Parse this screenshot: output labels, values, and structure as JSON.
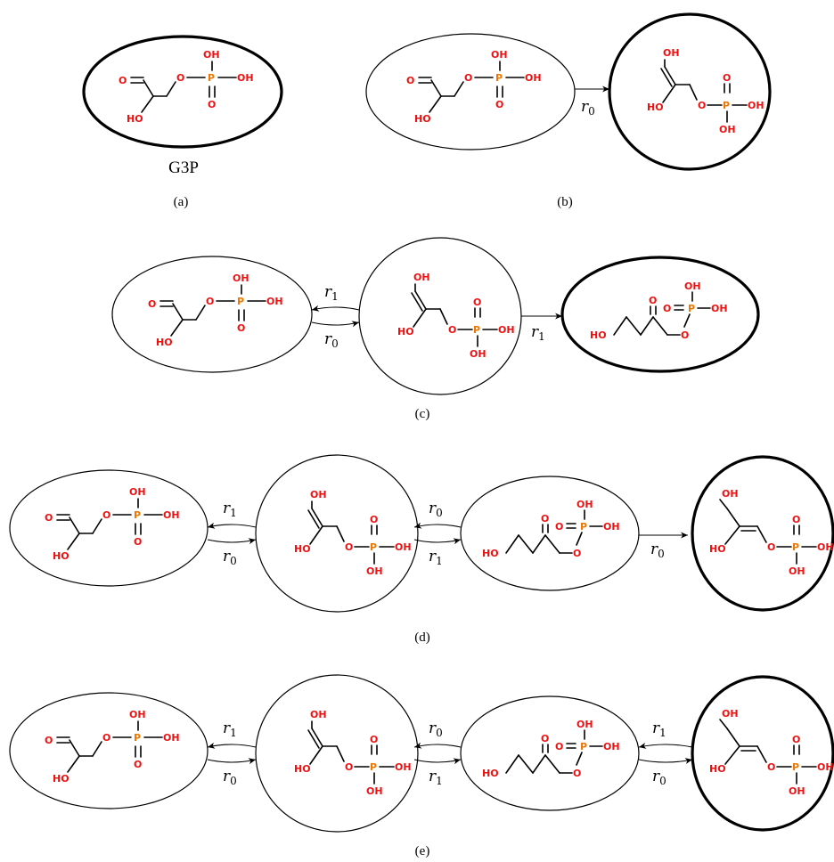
{
  "palette": {
    "oxygen": "#ee1111",
    "phosphorus": "#f07800",
    "bond": "#000000"
  },
  "labels": {
    "g3p": "G3P",
    "caption_a": "(a)",
    "caption_b": "(b)",
    "caption_c": "(c)",
    "caption_d": "(d)",
    "caption_e": "(e)",
    "r0": "r0",
    "r1": "r1"
  },
  "atoms": {
    "oh": "OH",
    "ho": "HO",
    "o": "O",
    "p": "P"
  },
  "molecules": [
    "G3P",
    "enediol",
    "DHAP",
    "enol"
  ],
  "panels": [
    {
      "id": "a",
      "states": [
        "G3P"
      ],
      "current": "G3P",
      "transitions": []
    },
    {
      "id": "b",
      "states": [
        "G3P",
        "enediol"
      ],
      "current": "enediol",
      "transitions": [
        {
          "from": "G3P",
          "to": "enediol",
          "rule": "r0"
        }
      ]
    },
    {
      "id": "c",
      "states": [
        "G3P",
        "enediol",
        "DHAP"
      ],
      "current": "DHAP",
      "transitions": [
        {
          "from": "enediol",
          "to": "G3P",
          "rule": "r1"
        },
        {
          "from": "G3P",
          "to": "enediol",
          "rule": "r0"
        },
        {
          "from": "enediol",
          "to": "DHAP",
          "rule": "r1"
        }
      ]
    },
    {
      "id": "d",
      "states": [
        "G3P",
        "enediol",
        "DHAP",
        "enol"
      ],
      "current": "enol",
      "transitions": [
        {
          "from": "enediol",
          "to": "G3P",
          "rule": "r1"
        },
        {
          "from": "G3P",
          "to": "enediol",
          "rule": "r0"
        },
        {
          "from": "DHAP",
          "to": "enediol",
          "rule": "r0"
        },
        {
          "from": "enediol",
          "to": "DHAP",
          "rule": "r1"
        },
        {
          "from": "DHAP",
          "to": "enol",
          "rule": "r0"
        }
      ]
    },
    {
      "id": "e",
      "states": [
        "G3P",
        "enediol",
        "DHAP",
        "enol"
      ],
      "current": "enol",
      "transitions": [
        {
          "from": "enediol",
          "to": "G3P",
          "rule": "r1"
        },
        {
          "from": "G3P",
          "to": "enediol",
          "rule": "r0"
        },
        {
          "from": "DHAP",
          "to": "enediol",
          "rule": "r0"
        },
        {
          "from": "enediol",
          "to": "DHAP",
          "rule": "r1"
        },
        {
          "from": "enol",
          "to": "DHAP",
          "rule": "r1"
        },
        {
          "from": "DHAP",
          "to": "enol",
          "rule": "r0"
        }
      ]
    }
  ]
}
